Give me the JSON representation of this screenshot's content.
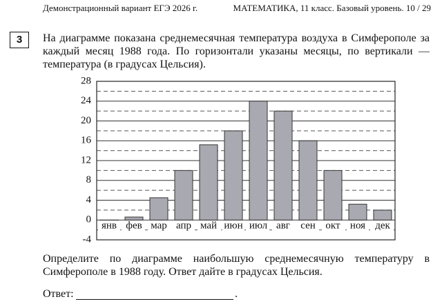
{
  "header": {
    "left": "Демонстрационный вариант ЕГЭ 2026 г.",
    "right": "МАТЕМАТИКА, 11 класс. Базовый уровень. 10 / 29"
  },
  "task_number": "3",
  "question": "На диаграмме показана среднемесячная температура воздуха в Симферополе за каждый месяц 1988 года. По горизонтали указаны месяцы, по вертикали — температура (в градусах Цельсия).",
  "chart_data": {
    "type": "bar",
    "categories": [
      "янв",
      "фев",
      "мар",
      "апр",
      "май",
      "июн",
      "июл",
      "авг",
      "сен",
      "окт",
      "ноя",
      "дек"
    ],
    "values": [
      -1,
      0.6,
      4.5,
      10,
      15.2,
      18,
      24,
      22,
      16,
      10,
      3.2,
      2
    ],
    "color": "#a9a9b1",
    "ylim": [
      -4,
      28
    ],
    "yticks": [
      -4,
      0,
      4,
      8,
      12,
      16,
      20,
      24,
      28
    ],
    "minor_grid": [
      -2,
      2,
      6,
      10,
      14,
      18,
      22,
      26
    ],
    "grid": true
  },
  "instruction": "Определите по диаграмме наибольшую среднемесячную температуру в Симферополе в 1988 году. Ответ дайте в градусах Цельсия.",
  "answer": {
    "label": "Ответ:",
    "end": "."
  }
}
